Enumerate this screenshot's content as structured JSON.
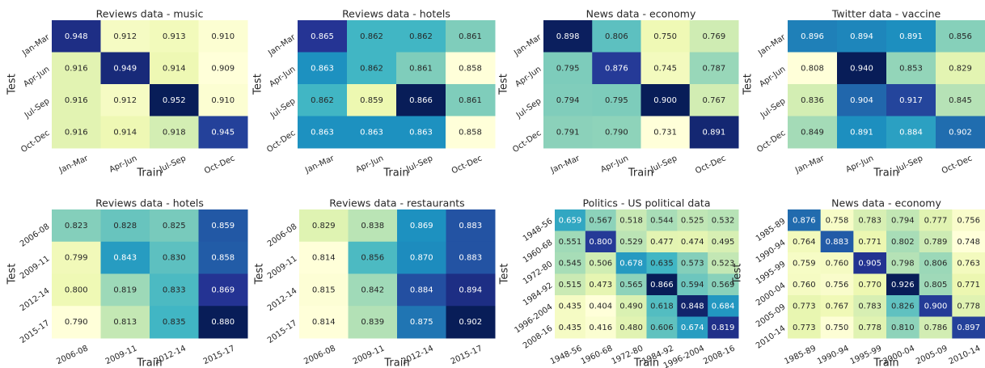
{
  "chart_data": [
    {
      "type": "heatmap",
      "title": "Reviews data - music",
      "xlabel": "Train",
      "ylabel": "Test",
      "colormap": "YlGnBu",
      "x_categories": [
        "Jan-Mar",
        "Apr-Jun",
        "Jul-Sep",
        "Oct-Dec"
      ],
      "y_categories": [
        "Jan-Mar",
        "Apr-Jun",
        "Jul-Sep",
        "Oct-Dec"
      ],
      "values": [
        [
          0.948,
          0.912,
          0.913,
          0.91
        ],
        [
          0.916,
          0.949,
          0.914,
          0.909
        ],
        [
          0.916,
          0.912,
          0.952,
          0.91
        ],
        [
          0.916,
          0.914,
          0.918,
          0.945
        ]
      ],
      "value_labels": [
        [
          "0.948",
          "0.912",
          "0.913",
          "0.910"
        ],
        [
          "0.916",
          "0.949",
          "0.914",
          "0.909"
        ],
        [
          "0.916",
          "0.912",
          "0.952",
          "0.910"
        ],
        [
          "0.916",
          "0.914",
          "0.918",
          "0.945"
        ]
      ]
    },
    {
      "type": "heatmap",
      "title": "Reviews data - hotels",
      "xlabel": "Train",
      "ylabel": "Test",
      "colormap": "YlGnBu",
      "x_categories": [
        "Jan-Mar",
        "Apr-Jun",
        "Jul-Sep",
        "Oct-Dec"
      ],
      "y_categories": [
        "Jan-Mar",
        "Apr-Jun",
        "Jul-Sep",
        "Oct-Dec"
      ],
      "values": [
        [
          0.865,
          0.862,
          0.862,
          0.861
        ],
        [
          0.863,
          0.862,
          0.861,
          0.858
        ],
        [
          0.862,
          0.859,
          0.866,
          0.861
        ],
        [
          0.863,
          0.863,
          0.863,
          0.858
        ]
      ],
      "value_labels": [
        [
          "0.865",
          "0.862",
          "0.862",
          "0.861"
        ],
        [
          "0.863",
          "0.862",
          "0.861",
          "0.858"
        ],
        [
          "0.862",
          "0.859",
          "0.866",
          "0.861"
        ],
        [
          "0.863",
          "0.863",
          "0.863",
          "0.858"
        ]
      ]
    },
    {
      "type": "heatmap",
      "title": "News data - economy",
      "xlabel": "Train",
      "ylabel": "Test",
      "colormap": "YlGnBu",
      "x_categories": [
        "Jan-Mar",
        "Apr-Jun",
        "Jul-Sep",
        "Oct-Dec"
      ],
      "y_categories": [
        "Jan-Mar",
        "Apr-Jun",
        "Jul-Sep",
        "Oct-Dec"
      ],
      "values": [
        [
          0.898,
          0.806,
          0.75,
          0.769
        ],
        [
          0.795,
          0.876,
          0.745,
          0.787
        ],
        [
          0.794,
          0.795,
          0.9,
          0.767
        ],
        [
          0.791,
          0.79,
          0.731,
          0.891
        ]
      ],
      "value_labels": [
        [
          "0.898",
          "0.806",
          "0.750",
          "0.769"
        ],
        [
          "0.795",
          "0.876",
          "0.745",
          "0.787"
        ],
        [
          "0.794",
          "0.795",
          "0.900",
          "0.767"
        ],
        [
          "0.791",
          "0.790",
          "0.731",
          "0.891"
        ]
      ]
    },
    {
      "type": "heatmap",
      "title": "Twitter data - vaccine",
      "xlabel": "Train",
      "ylabel": "Test",
      "colormap": "YlGnBu",
      "x_categories": [
        "Jan-Mar",
        "Apr-Jun",
        "Jul-Sep",
        "Oct-Dec"
      ],
      "y_categories": [
        "Jan-Mar",
        "Apr-Jun",
        "Jul-Sep",
        "Oct-Dec"
      ],
      "values": [
        [
          0.896,
          0.894,
          0.891,
          0.856
        ],
        [
          0.808,
          0.94,
          0.853,
          0.829
        ],
        [
          0.836,
          0.904,
          0.917,
          0.845
        ],
        [
          0.849,
          0.891,
          0.884,
          0.902
        ]
      ],
      "value_labels": [
        [
          "0.896",
          "0.894",
          "0.891",
          "0.856"
        ],
        [
          "0.808",
          "0.940",
          "0.853",
          "0.829"
        ],
        [
          "0.836",
          "0.904",
          "0.917",
          "0.845"
        ],
        [
          "0.849",
          "0.891",
          "0.884",
          "0.902"
        ]
      ]
    },
    {
      "type": "heatmap",
      "title": "Reviews data - hotels",
      "xlabel": "Train",
      "ylabel": "Test",
      "colormap": "YlGnBu",
      "x_categories": [
        "2006-08",
        "2009-11",
        "2012-14",
        "2015-17"
      ],
      "y_categories": [
        "2006-08",
        "2009-11",
        "2012-14",
        "2015-17"
      ],
      "values": [
        [
          0.823,
          0.828,
          0.825,
          0.859
        ],
        [
          0.799,
          0.843,
          0.83,
          0.858
        ],
        [
          0.8,
          0.819,
          0.833,
          0.869
        ],
        [
          0.79,
          0.813,
          0.835,
          0.88
        ]
      ],
      "value_labels": [
        [
          "0.823",
          "0.828",
          "0.825",
          "0.859"
        ],
        [
          "0.799",
          "0.843",
          "0.830",
          "0.858"
        ],
        [
          "0.800",
          "0.819",
          "0.833",
          "0.869"
        ],
        [
          "0.790",
          "0.813",
          "0.835",
          "0.880"
        ]
      ]
    },
    {
      "type": "heatmap",
      "title": "Reviews data - restaurants",
      "xlabel": "Train",
      "ylabel": "Test",
      "colormap": "YlGnBu",
      "x_categories": [
        "2006-08",
        "2009-11",
        "2012-14",
        "2015-17"
      ],
      "y_categories": [
        "2006-08",
        "2009-11",
        "2012-14",
        "2015-17"
      ],
      "values": [
        [
          0.829,
          0.838,
          0.869,
          0.883
        ],
        [
          0.814,
          0.856,
          0.87,
          0.883
        ],
        [
          0.815,
          0.842,
          0.884,
          0.894
        ],
        [
          0.814,
          0.839,
          0.875,
          0.902
        ]
      ],
      "value_labels": [
        [
          "0.829",
          "0.838",
          "0.869",
          "0.883"
        ],
        [
          "0.814",
          "0.856",
          "0.870",
          "0.883"
        ],
        [
          "0.815",
          "0.842",
          "0.884",
          "0.894"
        ],
        [
          "0.814",
          "0.839",
          "0.875",
          "0.902"
        ]
      ]
    },
    {
      "type": "heatmap",
      "title": "Politics - US political data",
      "xlabel": "Train",
      "ylabel": "Test",
      "colormap": "YlGnBu",
      "x_categories": [
        "1948-56",
        "1960-68",
        "1972-80",
        "1984-92",
        "1996-2004",
        "2008-16"
      ],
      "y_categories": [
        "1948-56",
        "1960-68",
        "1972-80",
        "1984-92",
        "1996-2004",
        "2008-16"
      ],
      "values": [
        [
          0.659,
          0.567,
          0.518,
          0.544,
          0.525,
          0.532
        ],
        [
          0.551,
          0.8,
          0.529,
          0.477,
          0.474,
          0.495
        ],
        [
          0.545,
          0.506,
          0.678,
          0.635,
          0.573,
          0.523
        ],
        [
          0.515,
          0.473,
          0.565,
          0.866,
          0.594,
          0.569
        ],
        [
          0.435,
          0.404,
          0.49,
          0.618,
          0.848,
          0.684
        ],
        [
          0.435,
          0.416,
          0.48,
          0.606,
          0.674,
          0.819
        ]
      ],
      "value_labels": [
        [
          "0.659",
          "0.567",
          "0.518",
          "0.544",
          "0.525",
          "0.532"
        ],
        [
          "0.551",
          "0.800",
          "0.529",
          "0.477",
          "0.474",
          "0.495"
        ],
        [
          "0.545",
          "0.506",
          "0.678",
          "0.635",
          "0.573",
          "0.523"
        ],
        [
          "0.515",
          "0.473",
          "0.565",
          "0.866",
          "0.594",
          "0.569"
        ],
        [
          "0.435",
          "0.404",
          "0.490",
          "0.618",
          "0.848",
          "0.684"
        ],
        [
          "0.435",
          "0.416",
          "0.480",
          "0.606",
          "0.674",
          "0.819"
        ]
      ]
    },
    {
      "type": "heatmap",
      "title": "News data - economy",
      "xlabel": "Train",
      "ylabel": "Test",
      "colormap": "YlGnBu",
      "x_categories": [
        "1985-89",
        "1990-94",
        "1995-99",
        "2000-04",
        "2005-09",
        "2010-14"
      ],
      "y_categories": [
        "1985-89",
        "1990-94",
        "1995-99",
        "2000-04",
        "2005-09",
        "2010-14"
      ],
      "values": [
        [
          0.876,
          0.758,
          0.783,
          0.794,
          0.777,
          0.756
        ],
        [
          0.764,
          0.883,
          0.771,
          0.802,
          0.789,
          0.748
        ],
        [
          0.759,
          0.76,
          0.905,
          0.798,
          0.806,
          0.763
        ],
        [
          0.76,
          0.756,
          0.77,
          0.926,
          0.805,
          0.771
        ],
        [
          0.773,
          0.767,
          0.783,
          0.826,
          0.9,
          0.778
        ],
        [
          0.773,
          0.75,
          0.778,
          0.81,
          0.786,
          0.897
        ]
      ],
      "value_labels": [
        [
          "0.876",
          "0.758",
          "0.783",
          "0.794",
          "0.777",
          "0.756"
        ],
        [
          "0.764",
          "0.883",
          "0.771",
          "0.802",
          "0.789",
          "0.748"
        ],
        [
          "0.759",
          "0.760",
          "0.905",
          "0.798",
          "0.806",
          "0.763"
        ],
        [
          "0.760",
          "0.756",
          "0.770",
          "0.926",
          "0.805",
          "0.771"
        ],
        [
          "0.773",
          "0.767",
          "0.783",
          "0.826",
          "0.900",
          "0.778"
        ],
        [
          "0.773",
          "0.750",
          "0.778",
          "0.810",
          "0.786",
          "0.897"
        ]
      ]
    }
  ]
}
